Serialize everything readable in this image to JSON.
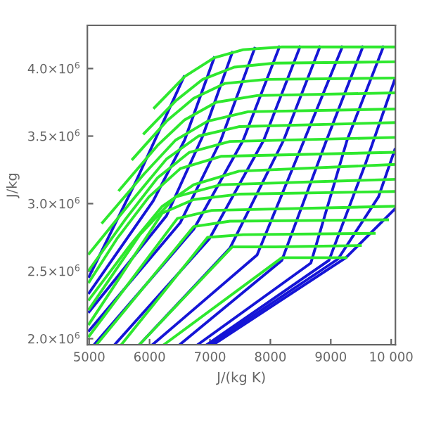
{
  "chart_data": {
    "type": "line",
    "xlabel": "J/(kg K)",
    "ylabel": "J/kg",
    "xlim": [
      4970,
      10070
    ],
    "ylim": [
      1955000,
      4320000
    ],
    "xticks": [
      5000,
      6000,
      7000,
      8000,
      9000,
      {
        "value": 10000,
        "label": "10 000"
      }
    ],
    "yticks": [
      {
        "value": 2000000,
        "label": "2.0×10$^{6}$"
      },
      {
        "value": 2500000,
        "label": "2.5×10$^{6}$"
      },
      {
        "value": 3000000,
        "label": "3.0×10$^{6}$"
      },
      {
        "value": 3500000,
        "label": "3.5×10$^{6}$"
      },
      {
        "value": 4000000,
        "label": "4.0×10$^{6}$"
      }
    ],
    "grid": false,
    "legend": false,
    "marker": "none",
    "line_style": "solid",
    "series": [
      {
        "color": "#1515d6",
        "x": [
          5000,
          5760,
          6570
        ],
        "values": [
          2460000,
          3150000,
          3940000
        ]
      },
      {
        "color": "#1515d6",
        "x": [
          5000,
          6060,
          6580,
          7070
        ],
        "values": [
          2340000,
          3020000,
          3470000,
          4080000
        ]
      },
      {
        "color": "#1515d6",
        "x": [
          5000,
          6280,
          6880,
          7370
        ],
        "values": [
          2200000,
          2910000,
          3500000,
          4120000
        ]
      },
      {
        "color": "#1515d6",
        "x": [
          5000,
          6510,
          7180,
          7740
        ],
        "values": [
          2060000,
          2860000,
          3470000,
          4150000
        ]
      },
      {
        "color": "#1515d6",
        "x": [
          5090,
          6730,
          7550,
          8150
        ],
        "values": [
          1960000,
          2810000,
          3470000,
          4160000
        ]
      },
      {
        "color": "#1515d6",
        "x": [
          5430,
          6990,
          7890,
          8490
        ],
        "values": [
          1960000,
          2740000,
          3470000,
          4160000
        ]
      },
      {
        "color": "#1515d6",
        "x": [
          5840,
          7330,
          8220,
          8820
        ],
        "values": [
          1960000,
          2670000,
          3470000,
          4160000
        ]
      },
      {
        "color": "#1515d6",
        "x": [
          6060,
          7780,
          8560,
          9190
        ],
        "values": [
          1960000,
          2620000,
          3470000,
          4160000
        ]
      },
      {
        "color": "#1515d6",
        "x": [
          6510,
          8190,
          8930,
          9530
        ],
        "values": [
          1960000,
          2580000,
          3470000,
          4160000
        ]
      },
      {
        "color": "#1515d6",
        "x": [
          6810,
          8670,
          9270,
          9870
        ],
        "values": [
          1960000,
          2560000,
          3470000,
          4160000
        ]
      },
      {
        "color": "#1515d6",
        "x": [
          6960,
          8970,
          9570,
          10060
        ],
        "values": [
          1960000,
          2580000,
          3290000,
          3920000
        ]
      },
      {
        "color": "#1515d6",
        "x": [
          7010,
          9120,
          9790,
          10060
        ],
        "values": [
          1960000,
          2590000,
          3050000,
          3400000
        ]
      },
      {
        "color": "#1515d6",
        "x": [
          7070,
          9250,
          10060
        ],
        "values": [
          1960000,
          2600000,
          2960000
        ]
      },
      {
        "color": "#2ee82e",
        "x": [
          6080,
          6580,
          7070,
          7550,
          8190,
          10060
        ],
        "values": [
          3710000,
          3940000,
          4080000,
          4140000,
          4160000,
          4160000
        ]
      },
      {
        "color": "#2ee82e",
        "x": [
          5910,
          6430,
          6880,
          7400,
          8070,
          10060
        ],
        "values": [
          3520000,
          3760000,
          3920000,
          4010000,
          4040000,
          4050000
        ]
      },
      {
        "color": "#2ee82e",
        "x": [
          5720,
          6280,
          6730,
          7250,
          7930,
          10060
        ],
        "values": [
          3330000,
          3610000,
          3780000,
          3890000,
          3920000,
          3930000
        ]
      },
      {
        "color": "#2ee82e",
        "x": [
          5500,
          6130,
          6580,
          7100,
          7780,
          10060
        ],
        "values": [
          3100000,
          3430000,
          3620000,
          3750000,
          3800000,
          3820000
        ]
      },
      {
        "color": "#2ee82e",
        "x": [
          5220,
          5910,
          6430,
          6960,
          7630,
          10060
        ],
        "values": [
          2860000,
          3220000,
          3470000,
          3610000,
          3680000,
          3700000
        ]
      },
      {
        "color": "#2ee82e",
        "x": [
          5000,
          5760,
          6280,
          6810,
          7480,
          10060
        ],
        "values": [
          2630000,
          3050000,
          3330000,
          3500000,
          3570000,
          3600000
        ]
      },
      {
        "color": "#2ee82e",
        "x": [
          5000,
          5610,
          6130,
          6660,
          7330,
          10060
        ],
        "values": [
          2510000,
          2890000,
          3190000,
          3380000,
          3460000,
          3490000
        ]
      },
      {
        "color": "#2ee82e",
        "x": [
          5000,
          5460,
          5990,
          6510,
          7180,
          10060
        ],
        "values": [
          2420000,
          2740000,
          3050000,
          3260000,
          3350000,
          3380000
        ]
      },
      {
        "color": "#2ee82e",
        "x": [
          5000,
          5690,
          6210,
          6730,
          7480,
          10060
        ],
        "values": [
          2290000,
          2700000,
          2980000,
          3140000,
          3240000,
          3290000
        ]
      },
      {
        "color": "#2ee82e",
        "x": [
          5000,
          5840,
          6430,
          7180,
          10060
        ],
        "values": [
          2220000,
          2770000,
          3050000,
          3140000,
          3180000
        ]
      },
      {
        "color": "#2ee82e",
        "x": [
          5000,
          6210,
          6730,
          7480,
          10060
        ],
        "values": [
          2110000,
          2930000,
          3030000,
          3070000,
          3090000
        ]
      },
      {
        "color": "#2ee82e",
        "x": [
          5000,
          6460,
          7030,
          10060
        ],
        "values": [
          2020000,
          2890000,
          2950000,
          2980000
        ]
      },
      {
        "color": "#2ee82e",
        "x": [
          5130,
          6730,
          7330,
          9940
        ],
        "values": [
          1960000,
          2830000,
          2870000,
          2880000
        ]
      },
      {
        "color": "#2ee82e",
        "x": [
          5540,
          6960,
          7550,
          9720
        ],
        "values": [
          1960000,
          2750000,
          2770000,
          2780000
        ]
      },
      {
        "color": "#2ee82e",
        "x": [
          5840,
          7370,
          8070,
          9490
        ],
        "values": [
          1960000,
          2680000,
          2680000,
          2690000
        ]
      },
      {
        "color": "#2ee82e",
        "x": [
          6250,
          8190,
          9250
        ],
        "values": [
          1960000,
          2600000,
          2600000
        ]
      }
    ]
  }
}
